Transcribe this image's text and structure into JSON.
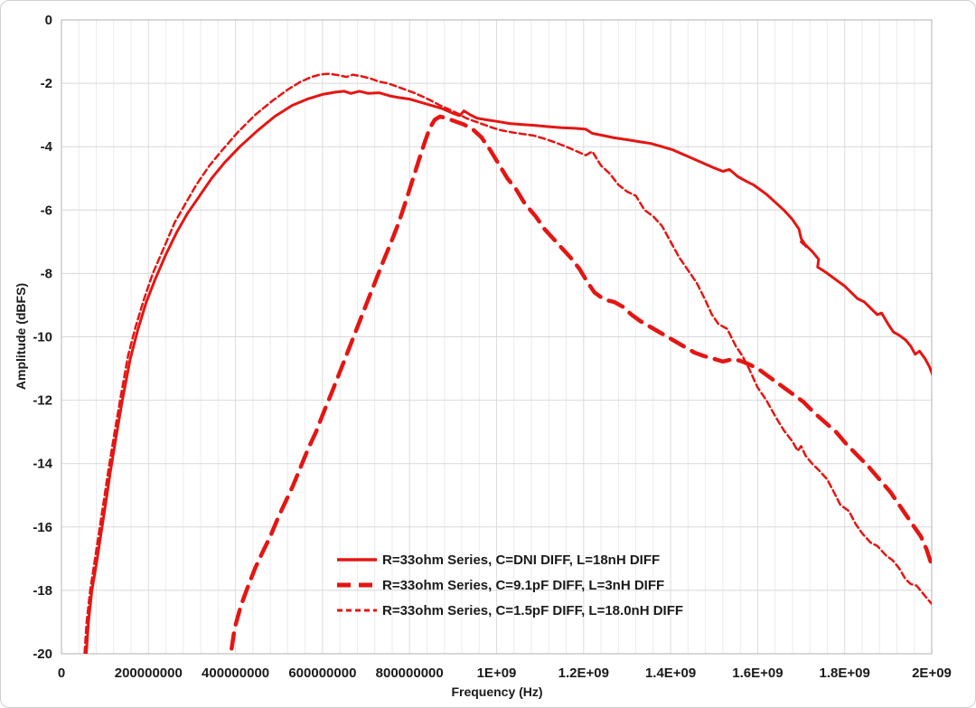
{
  "chart_data": {
    "type": "line",
    "title": "",
    "xlabel": "Frequency (Hz)",
    "ylabel": "Amplitude (dBFS)",
    "xlim_hz": [
      0,
      2000000000
    ],
    "ylim_dbfs": [
      -20,
      0
    ],
    "x_tick_labels": [
      "0",
      "200000000",
      "400000000",
      "600000000",
      "800000000",
      "1E+09",
      "1.2E+09",
      "1.4E+09",
      "1.6E+09",
      "1.8E+09",
      "2E+09"
    ],
    "y_tick_labels": [
      "0",
      "-2",
      "-4",
      "-6",
      "-8",
      "-10",
      "-12",
      "-14",
      "-16",
      "-18",
      "-20"
    ],
    "grid": {
      "vertical_minor_interval_mhz": 40,
      "vertical_major_interval_mhz": 200,
      "horizontal_interval_db": 2,
      "grid_on": true
    },
    "legend_position": "inside-bottom-center",
    "colors": {
      "series_red": "#e41613",
      "grid_minor": "#ebebeb",
      "grid_major": "#dcdcdc",
      "grid_horizontal": "#d8d8d8",
      "plot_border": "#bdbdbd",
      "text": "#1a1a1a"
    },
    "series": [
      {
        "name": "R=33ohm Series, C=DNI DIFF, L=18nH DIFF",
        "style": "solid",
        "stroke_width": 3,
        "points_mhz_db": [
          [
            54,
            -20.6
          ],
          [
            62,
            -19
          ],
          [
            70,
            -18
          ],
          [
            80,
            -17.2
          ],
          [
            90,
            -16.3
          ],
          [
            100,
            -15.4
          ],
          [
            112,
            -14.3
          ],
          [
            125,
            -13.2
          ],
          [
            140,
            -12
          ],
          [
            158,
            -10.7
          ],
          [
            175,
            -9.8
          ],
          [
            195,
            -8.9
          ],
          [
            215,
            -8.2
          ],
          [
            240,
            -7.4
          ],
          [
            265,
            -6.7
          ],
          [
            290,
            -6.1
          ],
          [
            315,
            -5.6
          ],
          [
            345,
            -5
          ],
          [
            375,
            -4.5
          ],
          [
            410,
            -4
          ],
          [
            450,
            -3.5
          ],
          [
            490,
            -3.05
          ],
          [
            530,
            -2.7
          ],
          [
            565,
            -2.5
          ],
          [
            600,
            -2.35
          ],
          [
            630,
            -2.28
          ],
          [
            650,
            -2.25
          ],
          [
            665,
            -2.32
          ],
          [
            685,
            -2.25
          ],
          [
            705,
            -2.32
          ],
          [
            730,
            -2.3
          ],
          [
            755,
            -2.4
          ],
          [
            775,
            -2.45
          ],
          [
            800,
            -2.5
          ],
          [
            825,
            -2.6
          ],
          [
            850,
            -2.7
          ],
          [
            875,
            -2.8
          ],
          [
            900,
            -2.95
          ],
          [
            915,
            -3.02
          ],
          [
            925,
            -2.87
          ],
          [
            940,
            -3.0
          ],
          [
            955,
            -3.1
          ],
          [
            975,
            -3.15
          ],
          [
            1000,
            -3.2
          ],
          [
            1030,
            -3.27
          ],
          [
            1060,
            -3.3
          ],
          [
            1090,
            -3.33
          ],
          [
            1120,
            -3.37
          ],
          [
            1150,
            -3.4
          ],
          [
            1180,
            -3.42
          ],
          [
            1205,
            -3.45
          ],
          [
            1220,
            -3.58
          ],
          [
            1245,
            -3.65
          ],
          [
            1270,
            -3.72
          ],
          [
            1300,
            -3.78
          ],
          [
            1330,
            -3.85
          ],
          [
            1355,
            -3.9
          ],
          [
            1380,
            -4.0
          ],
          [
            1405,
            -4.1
          ],
          [
            1430,
            -4.25
          ],
          [
            1455,
            -4.4
          ],
          [
            1480,
            -4.55
          ],
          [
            1500,
            -4.67
          ],
          [
            1520,
            -4.78
          ],
          [
            1535,
            -4.72
          ],
          [
            1555,
            -4.95
          ],
          [
            1575,
            -5.1
          ],
          [
            1590,
            -5.2
          ],
          [
            1605,
            -5.35
          ],
          [
            1620,
            -5.5
          ],
          [
            1640,
            -5.75
          ],
          [
            1660,
            -6.0
          ],
          [
            1680,
            -6.3
          ],
          [
            1695,
            -6.6
          ],
          [
            1700,
            -6.9
          ],
          [
            1712,
            -7.15
          ],
          [
            1700,
            -7.0
          ],
          [
            1710,
            -7.1
          ],
          [
            1725,
            -7.3
          ],
          [
            1740,
            -7.55
          ],
          [
            1738,
            -7.8
          ],
          [
            1755,
            -7.95
          ],
          [
            1770,
            -8.1
          ],
          [
            1785,
            -8.25
          ],
          [
            1800,
            -8.4
          ],
          [
            1815,
            -8.6
          ],
          [
            1830,
            -8.8
          ],
          [
            1845,
            -8.9
          ],
          [
            1860,
            -9.1
          ],
          [
            1875,
            -9.3
          ],
          [
            1885,
            -9.25
          ],
          [
            1900,
            -9.6
          ],
          [
            1912,
            -9.85
          ],
          [
            1925,
            -9.95
          ],
          [
            1940,
            -10.1
          ],
          [
            1952,
            -10.3
          ],
          [
            1962,
            -10.55
          ],
          [
            1972,
            -10.45
          ],
          [
            1985,
            -10.7
          ],
          [
            1995,
            -10.95
          ],
          [
            2002,
            -11.2
          ]
        ]
      },
      {
        "name": "R=33ohm Series, C=9.1pF DIFF, L=3nH DIFF",
        "style": "long-dash",
        "stroke_width": 4.5,
        "points_mhz_db": [
          [
            383,
            -20.6
          ],
          [
            398,
            -19.2
          ],
          [
            412,
            -18.5
          ],
          [
            428,
            -17.9
          ],
          [
            445,
            -17.3
          ],
          [
            462,
            -16.8
          ],
          [
            480,
            -16.3
          ],
          [
            498,
            -15.7
          ],
          [
            515,
            -15.2
          ],
          [
            532,
            -14.7
          ],
          [
            550,
            -14.1
          ],
          [
            568,
            -13.5
          ],
          [
            585,
            -13.0
          ],
          [
            602,
            -12.4
          ],
          [
            620,
            -11.8
          ],
          [
            640,
            -11.1
          ],
          [
            660,
            -10.4
          ],
          [
            680,
            -9.7
          ],
          [
            700,
            -9.0
          ],
          [
            720,
            -8.3
          ],
          [
            740,
            -7.6
          ],
          [
            758,
            -7.0
          ],
          [
            775,
            -6.4
          ],
          [
            792,
            -5.7
          ],
          [
            808,
            -5.0
          ],
          [
            822,
            -4.4
          ],
          [
            835,
            -3.85
          ],
          [
            847,
            -3.4
          ],
          [
            858,
            -3.15
          ],
          [
            870,
            -3.05
          ],
          [
            885,
            -3.1
          ],
          [
            905,
            -3.2
          ],
          [
            925,
            -3.3
          ],
          [
            945,
            -3.45
          ],
          [
            965,
            -3.7
          ],
          [
            985,
            -4.1
          ],
          [
            1005,
            -4.55
          ],
          [
            1025,
            -5.0
          ],
          [
            1045,
            -5.35
          ],
          [
            1065,
            -5.8
          ],
          [
            1090,
            -6.2
          ],
          [
            1110,
            -6.6
          ],
          [
            1130,
            -6.9
          ],
          [
            1150,
            -7.2
          ],
          [
            1170,
            -7.5
          ],
          [
            1190,
            -7.85
          ],
          [
            1210,
            -8.3
          ],
          [
            1225,
            -8.6
          ],
          [
            1240,
            -8.75
          ],
          [
            1255,
            -8.85
          ],
          [
            1270,
            -8.9
          ],
          [
            1290,
            -9.05
          ],
          [
            1310,
            -9.3
          ],
          [
            1330,
            -9.5
          ],
          [
            1355,
            -9.7
          ],
          [
            1380,
            -9.9
          ],
          [
            1405,
            -10.1
          ],
          [
            1430,
            -10.3
          ],
          [
            1455,
            -10.5
          ],
          [
            1475,
            -10.6
          ],
          [
            1500,
            -10.7
          ],
          [
            1520,
            -10.78
          ],
          [
            1545,
            -10.7
          ],
          [
            1565,
            -10.78
          ],
          [
            1585,
            -10.9
          ],
          [
            1605,
            -11.05
          ],
          [
            1630,
            -11.3
          ],
          [
            1655,
            -11.55
          ],
          [
            1680,
            -11.8
          ],
          [
            1705,
            -12.05
          ],
          [
            1730,
            -12.4
          ],
          [
            1755,
            -12.7
          ],
          [
            1780,
            -13.0
          ],
          [
            1805,
            -13.4
          ],
          [
            1830,
            -13.75
          ],
          [
            1855,
            -14.1
          ],
          [
            1880,
            -14.5
          ],
          [
            1905,
            -14.9
          ],
          [
            1925,
            -15.3
          ],
          [
            1945,
            -15.7
          ],
          [
            1960,
            -16.0
          ],
          [
            1975,
            -16.3
          ],
          [
            1988,
            -16.7
          ],
          [
            2000,
            -17.2
          ]
        ]
      },
      {
        "name": "R=33ohm Series, C=1.5pF DIFF, L=18.0nH DIFF",
        "style": "short-dash",
        "stroke_width": 2.5,
        "points_mhz_db": [
          [
            50,
            -20.6
          ],
          [
            58,
            -19
          ],
          [
            66,
            -18
          ],
          [
            76,
            -17.1
          ],
          [
            86,
            -16.2
          ],
          [
            96,
            -15.3
          ],
          [
            108,
            -14.2
          ],
          [
            121,
            -13.1
          ],
          [
            136,
            -11.9
          ],
          [
            153,
            -10.6
          ],
          [
            170,
            -9.7
          ],
          [
            190,
            -8.8
          ],
          [
            210,
            -8.0
          ],
          [
            235,
            -7.2
          ],
          [
            260,
            -6.4
          ],
          [
            285,
            -5.8
          ],
          [
            310,
            -5.2
          ],
          [
            340,
            -4.6
          ],
          [
            370,
            -4.1
          ],
          [
            405,
            -3.55
          ],
          [
            445,
            -3.0
          ],
          [
            485,
            -2.55
          ],
          [
            520,
            -2.2
          ],
          [
            550,
            -1.95
          ],
          [
            575,
            -1.8
          ],
          [
            595,
            -1.72
          ],
          [
            615,
            -1.7
          ],
          [
            635,
            -1.74
          ],
          [
            655,
            -1.8
          ],
          [
            670,
            -1.73
          ],
          [
            690,
            -1.78
          ],
          [
            710,
            -1.85
          ],
          [
            730,
            -1.95
          ],
          [
            750,
            -2.0
          ],
          [
            770,
            -2.1
          ],
          [
            790,
            -2.2
          ],
          [
            810,
            -2.3
          ],
          [
            830,
            -2.42
          ],
          [
            850,
            -2.55
          ],
          [
            870,
            -2.7
          ],
          [
            890,
            -2.82
          ],
          [
            910,
            -2.95
          ],
          [
            930,
            -3.1
          ],
          [
            950,
            -3.2
          ],
          [
            970,
            -3.3
          ],
          [
            990,
            -3.4
          ],
          [
            1010,
            -3.48
          ],
          [
            1035,
            -3.55
          ],
          [
            1060,
            -3.6
          ],
          [
            1085,
            -3.65
          ],
          [
            1110,
            -3.75
          ],
          [
            1135,
            -3.87
          ],
          [
            1160,
            -4.0
          ],
          [
            1185,
            -4.15
          ],
          [
            1205,
            -4.27
          ],
          [
            1220,
            -4.15
          ],
          [
            1240,
            -4.6
          ],
          [
            1260,
            -4.85
          ],
          [
            1280,
            -5.2
          ],
          [
            1300,
            -5.42
          ],
          [
            1320,
            -5.55
          ],
          [
            1340,
            -6.0
          ],
          [
            1360,
            -6.2
          ],
          [
            1380,
            -6.5
          ],
          [
            1400,
            -7.0
          ],
          [
            1420,
            -7.5
          ],
          [
            1440,
            -7.9
          ],
          [
            1460,
            -8.3
          ],
          [
            1480,
            -8.85
          ],
          [
            1495,
            -9.3
          ],
          [
            1510,
            -9.6
          ],
          [
            1530,
            -9.75
          ],
          [
            1550,
            -10.3
          ],
          [
            1565,
            -10.6
          ],
          [
            1580,
            -11.0
          ],
          [
            1600,
            -11.6
          ],
          [
            1620,
            -12.0
          ],
          [
            1640,
            -12.5
          ],
          [
            1660,
            -12.95
          ],
          [
            1680,
            -13.3
          ],
          [
            1692,
            -13.6
          ],
          [
            1700,
            -13.45
          ],
          [
            1710,
            -13.75
          ],
          [
            1725,
            -14.0
          ],
          [
            1740,
            -14.2
          ],
          [
            1760,
            -14.5
          ],
          [
            1775,
            -14.9
          ],
          [
            1790,
            -15.3
          ],
          [
            1810,
            -15.5
          ],
          [
            1825,
            -15.9
          ],
          [
            1840,
            -16.2
          ],
          [
            1860,
            -16.5
          ],
          [
            1875,
            -16.6
          ],
          [
            1895,
            -16.9
          ],
          [
            1910,
            -17.05
          ],
          [
            1925,
            -17.3
          ],
          [
            1940,
            -17.65
          ],
          [
            1952,
            -17.8
          ],
          [
            1965,
            -17.85
          ],
          [
            1980,
            -18.1
          ],
          [
            1992,
            -18.3
          ],
          [
            2002,
            -18.45
          ]
        ]
      }
    ]
  }
}
